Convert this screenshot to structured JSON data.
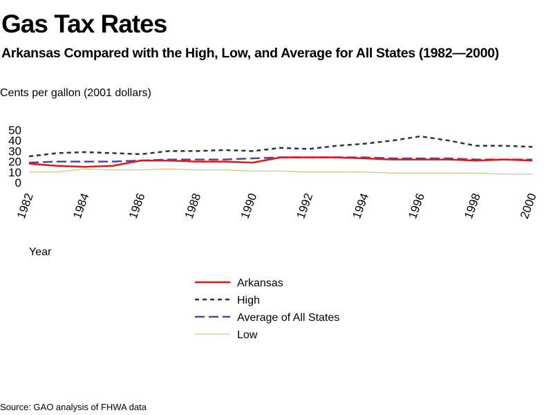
{
  "chart_data": {
    "type": "line",
    "title": "Gas Tax Rates",
    "subtitle": "Arkansas Compared with the High, Low, and Average for All States (1982—2000)",
    "ylabel": "Cents per gallon (2001 dollars)",
    "xlabel": "Year",
    "x": [
      1982,
      1983,
      1984,
      1985,
      1986,
      1987,
      1988,
      1989,
      1990,
      1991,
      1992,
      1993,
      1994,
      1995,
      1996,
      1997,
      1998,
      1999,
      2000
    ],
    "x_ticks": [
      "1982",
      "1984",
      "1986",
      "1988",
      "1990",
      "1992",
      "1994",
      "1996",
      "1998",
      "2000"
    ],
    "y_ticks": [
      "0",
      "10",
      "20",
      "30",
      "40",
      "50"
    ],
    "ylim": [
      0,
      50
    ],
    "grid": false,
    "legend_position": "bottom-center",
    "series": [
      {
        "name": "Arkansas",
        "style": "solid",
        "color": "#ee1111",
        "values": [
          18,
          16,
          15,
          16,
          21,
          21,
          20,
          20,
          19,
          24,
          24,
          24,
          23,
          22,
          22,
          22,
          21,
          22,
          21
        ]
      },
      {
        "name": "High",
        "style": "dotted",
        "color": "#1d3a2a",
        "values": [
          25,
          28,
          29,
          28,
          27,
          30,
          30,
          31,
          30,
          33,
          32,
          35,
          37,
          40,
          44,
          40,
          35,
          35,
          34
        ]
      },
      {
        "name": "Average of All States",
        "style": "dashed",
        "color": "#4a4aa0",
        "values": [
          19,
          20,
          20,
          20,
          21,
          22,
          22,
          22,
          23,
          24,
          24,
          24,
          24,
          23,
          23,
          23,
          22,
          22,
          22
        ]
      },
      {
        "name": "Low",
        "style": "solid-thin",
        "color": "#b5c060",
        "values": [
          10,
          10,
          13,
          12,
          12,
          13,
          12,
          12,
          11,
          11,
          10,
          10,
          10,
          9,
          9,
          9,
          9,
          8,
          8
        ]
      }
    ]
  },
  "source": "Source: GAO analysis of FHWA data"
}
